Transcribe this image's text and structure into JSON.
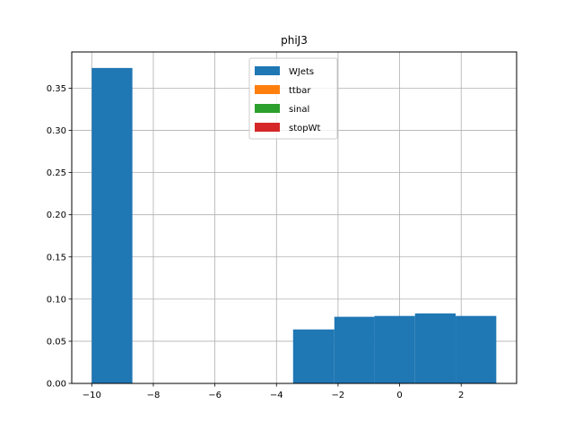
{
  "chart_data": {
    "type": "bar",
    "title": "phiJ3",
    "xlabel": "",
    "ylabel": "",
    "xlim": [
      -10.65,
      3.8
    ],
    "ylim": [
      0,
      0.393
    ],
    "grid": true,
    "legend_position": "top-center",
    "xticks": [
      -10,
      -8,
      -6,
      -4,
      -2,
      0,
      2
    ],
    "xtick_labels": [
      "−10",
      "−8",
      "−6",
      "−4",
      "−2",
      "0",
      "2"
    ],
    "yticks": [
      0.0,
      0.05,
      0.1,
      0.15,
      0.2,
      0.25,
      0.3,
      0.35
    ],
    "ytick_labels": [
      "0.00",
      "0.05",
      "0.10",
      "0.15",
      "0.20",
      "0.25",
      "0.30",
      "0.35"
    ],
    "series": [
      {
        "name": "WJets",
        "color": "#1f77b4",
        "bins": [
          {
            "x0": -10.0,
            "x1": -8.68,
            "value": 0.374
          },
          {
            "x0": -3.46,
            "x1": -2.12,
            "value": 0.064
          },
          {
            "x0": -2.12,
            "x1": -0.82,
            "value": 0.079
          },
          {
            "x0": -0.82,
            "x1": 0.5,
            "value": 0.08
          },
          {
            "x0": 0.5,
            "x1": 1.82,
            "value": 0.083
          },
          {
            "x0": 1.82,
            "x1": 3.14,
            "value": 0.08
          }
        ]
      },
      {
        "name": "ttbar",
        "color": "#ff7f0e",
        "bins": []
      },
      {
        "name": "sinal",
        "color": "#2ca02c",
        "bins": []
      },
      {
        "name": "stopWt",
        "color": "#d62728",
        "bins": []
      }
    ]
  }
}
